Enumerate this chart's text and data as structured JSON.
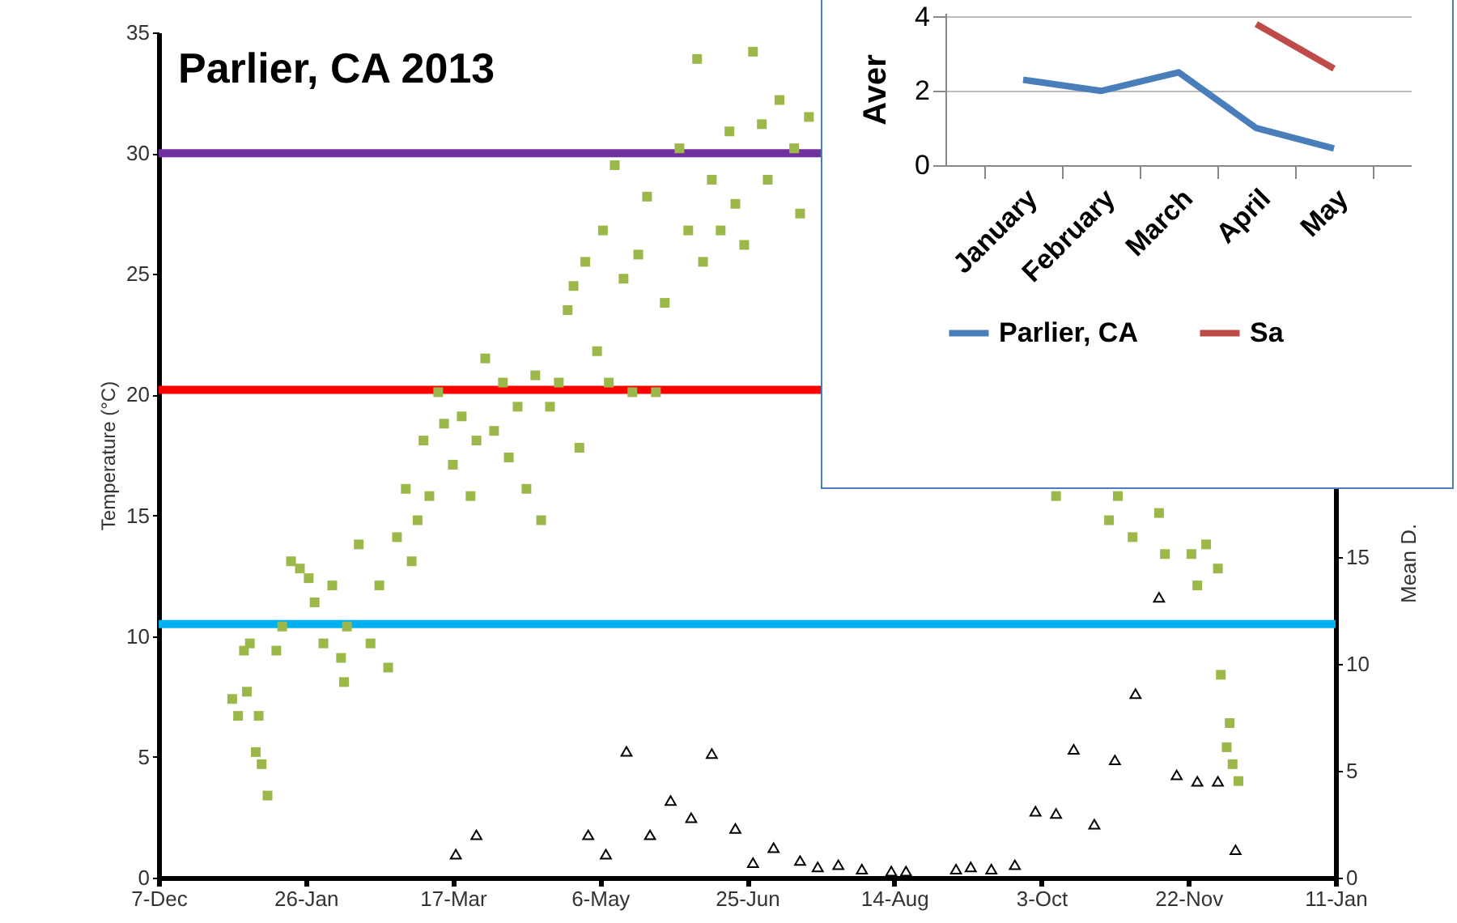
{
  "chart_data": [
    {
      "type": "scatter",
      "title": "Parlier, CA 2013",
      "ylabel": "Temperature (°C)",
      "y2label": "Mean D.",
      "xlim": [
        "2012-12-07",
        "2014-01-11"
      ],
      "xticks": [
        {
          "value": "2012-12-07",
          "label": "7-Dec"
        },
        {
          "value": "2013-01-26",
          "label": "26-Jan"
        },
        {
          "value": "2013-03-17",
          "label": "17-Mar"
        },
        {
          "value": "2013-05-06",
          "label": "6-May"
        },
        {
          "value": "2013-06-25",
          "label": "25-Jun"
        },
        {
          "value": "2013-08-14",
          "label": "14-Aug"
        },
        {
          "value": "2013-10-03",
          "label": "3-Oct"
        },
        {
          "value": "2013-11-22",
          "label": "22-Nov"
        },
        {
          "value": "2014-01-11",
          "label": "11-Jan"
        }
      ],
      "ylim": [
        0,
        35
      ],
      "yticks": [
        0,
        5,
        10,
        15,
        20,
        25,
        30,
        35
      ],
      "y2lim": [
        0,
        39.5
      ],
      "y2ticks": [
        0,
        5,
        10,
        15
      ],
      "grid": false,
      "ref_lines": [
        {
          "axis": "y",
          "value": 30,
          "color": "#7030a0"
        },
        {
          "axis": "y",
          "value": 20.2,
          "color": "#ff0000"
        },
        {
          "axis": "y",
          "value": 10.5,
          "color": "#00b0f0"
        }
      ],
      "series": [
        {
          "type": "scatter",
          "marker": "square",
          "color": "#9cb84a",
          "x": [
            "2013-01-01",
            "2013-01-03",
            "2013-01-05",
            "2013-01-07",
            "2013-01-06",
            "2013-01-09",
            "2013-01-11",
            "2013-01-13",
            "2013-01-10",
            "2013-01-16",
            "2013-01-18",
            "2013-01-21",
            "2013-01-24",
            "2013-01-27",
            "2013-01-29",
            "2013-02-01",
            "2013-02-04",
            "2013-02-07",
            "2013-02-09",
            "2013-02-08",
            "2013-02-13",
            "2013-02-17",
            "2013-02-20",
            "2013-02-23",
            "2013-02-26",
            "2013-03-01",
            "2013-03-03",
            "2013-03-05",
            "2013-03-07",
            "2013-03-09",
            "2013-03-12",
            "2013-03-14",
            "2013-03-17",
            "2013-03-20",
            "2013-03-23",
            "2013-03-25",
            "2013-03-28",
            "2013-03-31",
            "2013-04-03",
            "2013-04-05",
            "2013-04-08",
            "2013-04-11",
            "2013-04-14",
            "2013-04-16",
            "2013-04-19",
            "2013-04-22",
            "2013-04-25",
            "2013-04-27",
            "2013-04-29",
            "2013-05-01",
            "2013-05-05",
            "2013-05-07",
            "2013-05-09",
            "2013-05-11",
            "2013-05-14",
            "2013-05-17",
            "2013-05-19",
            "2013-05-22",
            "2013-05-25",
            "2013-05-28",
            "2013-06-02",
            "2013-06-05",
            "2013-06-08",
            "2013-06-10",
            "2013-06-13",
            "2013-06-16",
            "2013-06-19",
            "2013-06-21",
            "2013-06-24",
            "2013-06-27",
            "2013-06-30",
            "2013-07-02",
            "2013-07-06",
            "2013-07-11",
            "2013-07-13",
            "2013-07-16",
            "2013-10-08",
            "2013-10-26",
            "2013-10-29",
            "2013-11-03",
            "2013-11-12",
            "2013-11-14",
            "2013-11-23",
            "2013-11-25",
            "2013-11-28",
            "2013-12-02",
            "2013-12-03",
            "2013-12-05",
            "2013-12-06",
            "2013-12-07",
            "2013-12-09"
          ],
          "values": [
            7.4,
            6.7,
            9.4,
            9.7,
            7.7,
            5.2,
            4.7,
            3.4,
            6.7,
            9.4,
            10.4,
            13.1,
            12.8,
            12.4,
            11.4,
            9.7,
            12.1,
            9.1,
            10.4,
            8.1,
            13.8,
            9.7,
            12.1,
            8.7,
            14.1,
            16.1,
            13.1,
            14.8,
            18.1,
            15.8,
            20.1,
            18.8,
            17.1,
            19.1,
            15.8,
            18.1,
            21.5,
            18.5,
            20.5,
            17.4,
            19.5,
            16.1,
            20.8,
            14.8,
            19.5,
            20.5,
            23.5,
            24.5,
            17.8,
            25.5,
            21.8,
            26.8,
            20.5,
            29.5,
            24.8,
            20.1,
            25.8,
            28.2,
            20.1,
            23.8,
            30.2,
            26.8,
            33.9,
            25.5,
            28.9,
            26.8,
            30.9,
            27.9,
            26.2,
            34.2,
            31.2,
            28.9,
            32.2,
            30.2,
            27.5,
            31.5,
            15.8,
            14.8,
            15.8,
            14.1,
            15.1,
            13.4,
            13.4,
            12.1,
            13.8,
            12.8,
            8.4,
            5.4,
            6.4,
            4.7,
            4.0
          ]
        },
        {
          "type": "scatter",
          "axis": "y2",
          "marker": "triangle",
          "color": "#000000",
          "x": [
            "2013-03-18",
            "2013-03-25",
            "2013-05-02",
            "2013-05-08",
            "2013-05-15",
            "2013-05-23",
            "2013-05-30",
            "2013-06-06",
            "2013-06-13",
            "2013-06-21",
            "2013-06-27",
            "2013-07-04",
            "2013-07-13",
            "2013-07-19",
            "2013-07-26",
            "2013-08-03",
            "2013-08-13",
            "2013-08-18",
            "2013-09-04",
            "2013-09-09",
            "2013-09-16",
            "2013-09-24",
            "2013-10-01",
            "2013-10-08",
            "2013-10-14",
            "2013-10-21",
            "2013-10-28",
            "2013-11-04",
            "2013-11-12",
            "2013-11-18",
            "2013-11-25",
            "2013-12-02",
            "2013-12-08"
          ],
          "values": [
            1.1,
            2.0,
            2.0,
            1.1,
            5.9,
            2.0,
            3.6,
            2.8,
            5.8,
            2.3,
            0.7,
            1.4,
            0.8,
            0.5,
            0.6,
            0.4,
            0.3,
            0.3,
            0.4,
            0.5,
            0.4,
            0.6,
            3.1,
            3.0,
            6.0,
            2.5,
            5.5,
            8.6,
            13.1,
            4.8,
            4.5,
            4.5,
            1.3
          ]
        }
      ]
    },
    {
      "type": "line",
      "ylabel": "Aver",
      "categories": [
        "January",
        "February",
        "March",
        "April",
        "May"
      ],
      "ylim": [
        0,
        4.1
      ],
      "yticks": [
        0,
        2,
        4
      ],
      "grid": "y",
      "legend": "bottom",
      "series": [
        {
          "name": "Parlier, CA",
          "color": "#4a7ebb",
          "values": [
            2.3,
            2.0,
            2.5,
            1.0,
            0.45
          ]
        },
        {
          "name": "Sa",
          "color": "#be4b48",
          "values": [
            null,
            null,
            null,
            3.8,
            2.6
          ]
        }
      ]
    }
  ]
}
